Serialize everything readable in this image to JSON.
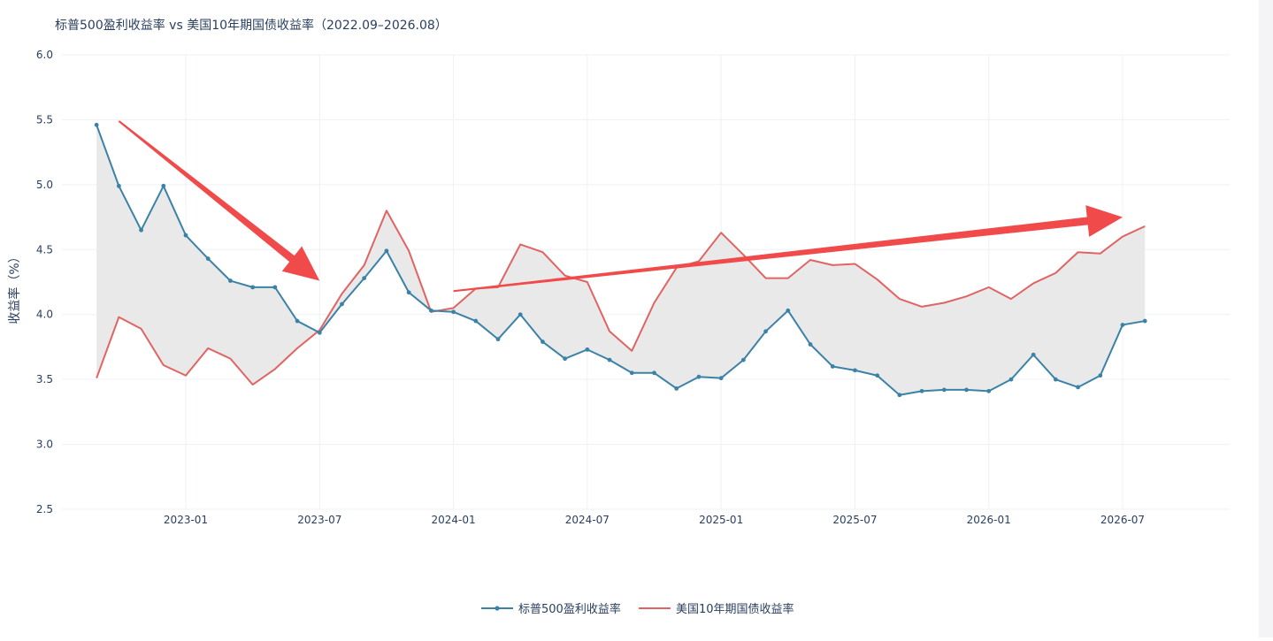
{
  "chart_data": {
    "type": "line",
    "title": "标普500盈利收益率 vs 美国10年期国债收益率（2022.09–2026.08）",
    "xlabel": "",
    "ylabel": "收益率（%）",
    "ylim": [
      2.5,
      6.0
    ],
    "yticks": [
      "2.5",
      "3.0",
      "3.5",
      "4.0",
      "4.5",
      "5.0",
      "5.5",
      "6.0"
    ],
    "xticks": [
      "2023-01",
      "2023-07",
      "2024-01",
      "2024-07",
      "2025-01",
      "2025-07",
      "2026-01",
      "2026-07"
    ],
    "x": [
      "2022-09",
      "2022-10",
      "2022-11",
      "2022-12",
      "2023-01",
      "2023-02",
      "2023-03",
      "2023-04",
      "2023-05",
      "2023-06",
      "2023-07",
      "2023-08",
      "2023-09",
      "2023-10",
      "2023-11",
      "2023-12",
      "2024-01",
      "2024-02",
      "2024-03",
      "2024-04",
      "2024-05",
      "2024-06",
      "2024-07",
      "2024-08",
      "2024-09",
      "2024-10",
      "2024-11",
      "2024-12",
      "2025-01",
      "2025-02",
      "2025-03",
      "2025-04",
      "2025-05",
      "2025-06",
      "2025-07",
      "2025-08",
      "2025-09",
      "2025-10",
      "2025-11",
      "2025-12",
      "2026-01",
      "2026-02",
      "2026-03",
      "2026-04",
      "2026-05",
      "2026-06",
      "2026-07",
      "2026-08"
    ],
    "series": [
      {
        "name": "标普500盈利收益率",
        "color": "#3b82a6",
        "values": [
          5.46,
          4.99,
          4.65,
          4.99,
          4.61,
          4.43,
          4.26,
          4.21,
          4.21,
          3.95,
          3.86,
          4.08,
          4.28,
          4.49,
          4.17,
          4.03,
          4.02,
          3.95,
          3.81,
          4.0,
          3.79,
          3.66,
          3.73,
          3.65,
          3.55,
          3.55,
          3.43,
          3.52,
          3.51,
          3.65,
          3.87,
          4.03,
          3.77,
          3.6,
          3.57,
          3.53,
          3.38,
          3.41,
          3.42,
          3.42,
          3.41,
          3.5,
          3.69,
          3.5,
          3.44,
          3.53,
          3.92,
          3.95
        ]
      },
      {
        "name": "美国10年期国债收益率",
        "color": "#e06464",
        "values": [
          3.51,
          3.98,
          3.89,
          3.61,
          3.53,
          3.74,
          3.66,
          3.46,
          3.58,
          3.74,
          3.88,
          4.16,
          4.38,
          4.8,
          4.49,
          4.02,
          4.05,
          4.2,
          4.21,
          4.54,
          4.48,
          4.3,
          4.25,
          3.87,
          3.72,
          4.09,
          4.36,
          4.41,
          4.63,
          4.46,
          4.28,
          4.28,
          4.42,
          4.38,
          4.39,
          4.27,
          4.12,
          4.06,
          4.09,
          4.14,
          4.21,
          4.12,
          4.24,
          4.32,
          4.48,
          4.47,
          4.6,
          4.68
        ]
      }
    ],
    "fill_between": true,
    "fill_color": "#e8e8e8",
    "grid": true,
    "legend_position": "bottom-center",
    "annotations": [
      {
        "type": "arrow",
        "color": "#f04a4a",
        "from": [
          "2022-10",
          5.49
        ],
        "to": [
          "2023-07",
          4.26
        ]
      },
      {
        "type": "arrow",
        "color": "#f04a4a",
        "from": [
          "2024-01",
          4.18
        ],
        "to": [
          "2026-07",
          4.75
        ]
      }
    ]
  }
}
